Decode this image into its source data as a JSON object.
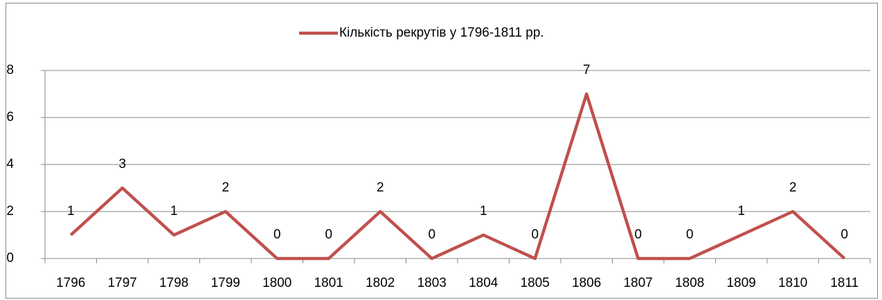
{
  "chart_data": {
    "type": "line",
    "categories": [
      "1796",
      "1797",
      "1798",
      "1799",
      "1800",
      "1801",
      "1802",
      "1803",
      "1804",
      "1805",
      "1806",
      "1807",
      "1808",
      "1809",
      "1810",
      "1811"
    ],
    "series": [
      {
        "name": "Кількість рекрутів у 1796-1811 рр.",
        "color": "#c0504d",
        "values": [
          1,
          3,
          1,
          2,
          0,
          0,
          2,
          0,
          1,
          0,
          7,
          0,
          0,
          1,
          2,
          0
        ]
      }
    ],
    "ylim": [
      0,
      8
    ],
    "yticks": [
      0,
      2,
      4,
      6,
      8
    ],
    "grid": true,
    "legend": "top"
  }
}
